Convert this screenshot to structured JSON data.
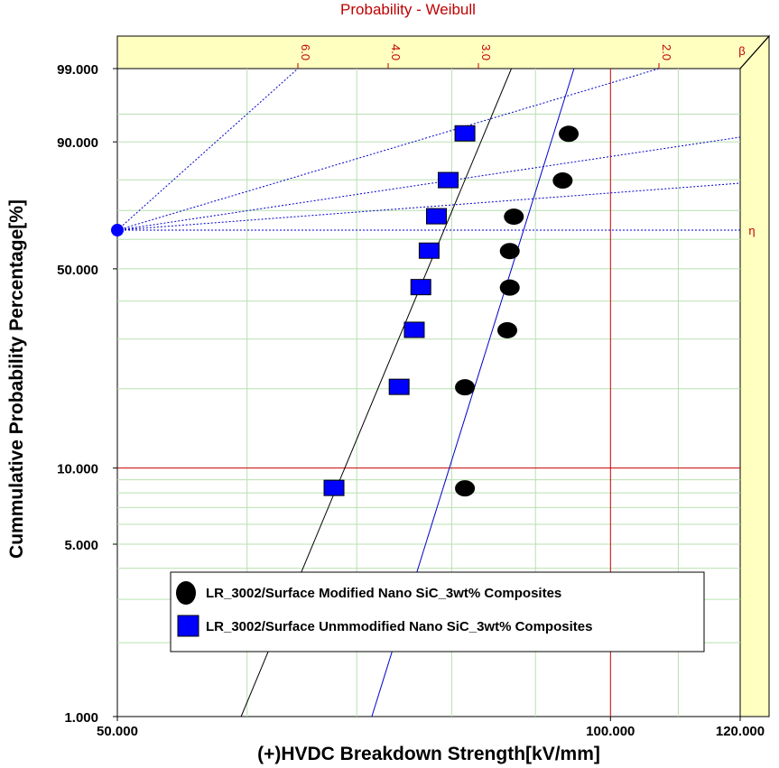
{
  "chart_data": {
    "type": "scatter",
    "title": "Probability - Weibull",
    "xlabel": "(+)HVDC Breakdown Strength[kV/mm]",
    "ylabel": "Cummulative Probability Percentage[%]",
    "x_scale": "log",
    "y_scale": "weibull",
    "xlim": [
      50,
      120
    ],
    "ylim": [
      1,
      99
    ],
    "x_tick_labels": [
      "50.000",
      "100.000",
      "120.000"
    ],
    "x_ticks": [
      50,
      100,
      120
    ],
    "y_tick_labels": [
      "1.000",
      "5.000",
      "10.000",
      "50.000",
      "90.000",
      "99.000"
    ],
    "y_ticks": [
      1,
      5,
      10,
      50,
      90,
      99
    ],
    "beta_scale": {
      "symbol": "β",
      "eta_symbol": "η",
      "labels": [
        "6.0",
        "4.0",
        "3.0",
        "2.0"
      ],
      "values": [
        6.0,
        4.0,
        3.0,
        2.0
      ]
    },
    "reference_lines": {
      "x": 100,
      "y": 10
    },
    "series": [
      {
        "name": "LR_3002/Surface Modified Nano SiC_3wt% Composites",
        "marker": "ellipse",
        "color": "#000000",
        "x": [
          81.5,
          81.5,
          86.5,
          86.8,
          86.8,
          87.3,
          93.5,
          94.3
        ],
        "y": [
          8.33,
          20.24,
          32.14,
          44.05,
          55.95,
          67.86,
          79.76,
          91.67
        ],
        "fit": {
          "from": [
            71.5,
            1.0
          ],
          "to": [
            95.0,
            99.0
          ],
          "color": "#0000cc"
        }
      },
      {
        "name": "LR_3002/Surface Unmmodified Nano SiC_3wt% Composites",
        "marker": "square",
        "color": "#0000ff",
        "x": [
          67.8,
          74.3,
          75.9,
          76.6,
          77.5,
          78.3,
          79.6,
          81.5
        ],
        "y": [
          8.33,
          20.24,
          32.14,
          44.05,
          55.95,
          67.86,
          79.76,
          91.67
        ],
        "fit": {
          "from": [
            59.5,
            1.0
          ],
          "to": [
            87.0,
            99.0
          ],
          "color": "#000000"
        }
      }
    ],
    "legend_position": "bottom-left",
    "grid": true
  },
  "colors": {
    "plot_background": "#ffffff",
    "margin_band": "#ffffc0",
    "grid": "#b8e0b0",
    "reference": "#cc0000",
    "beta_guide": "#0000cc"
  }
}
